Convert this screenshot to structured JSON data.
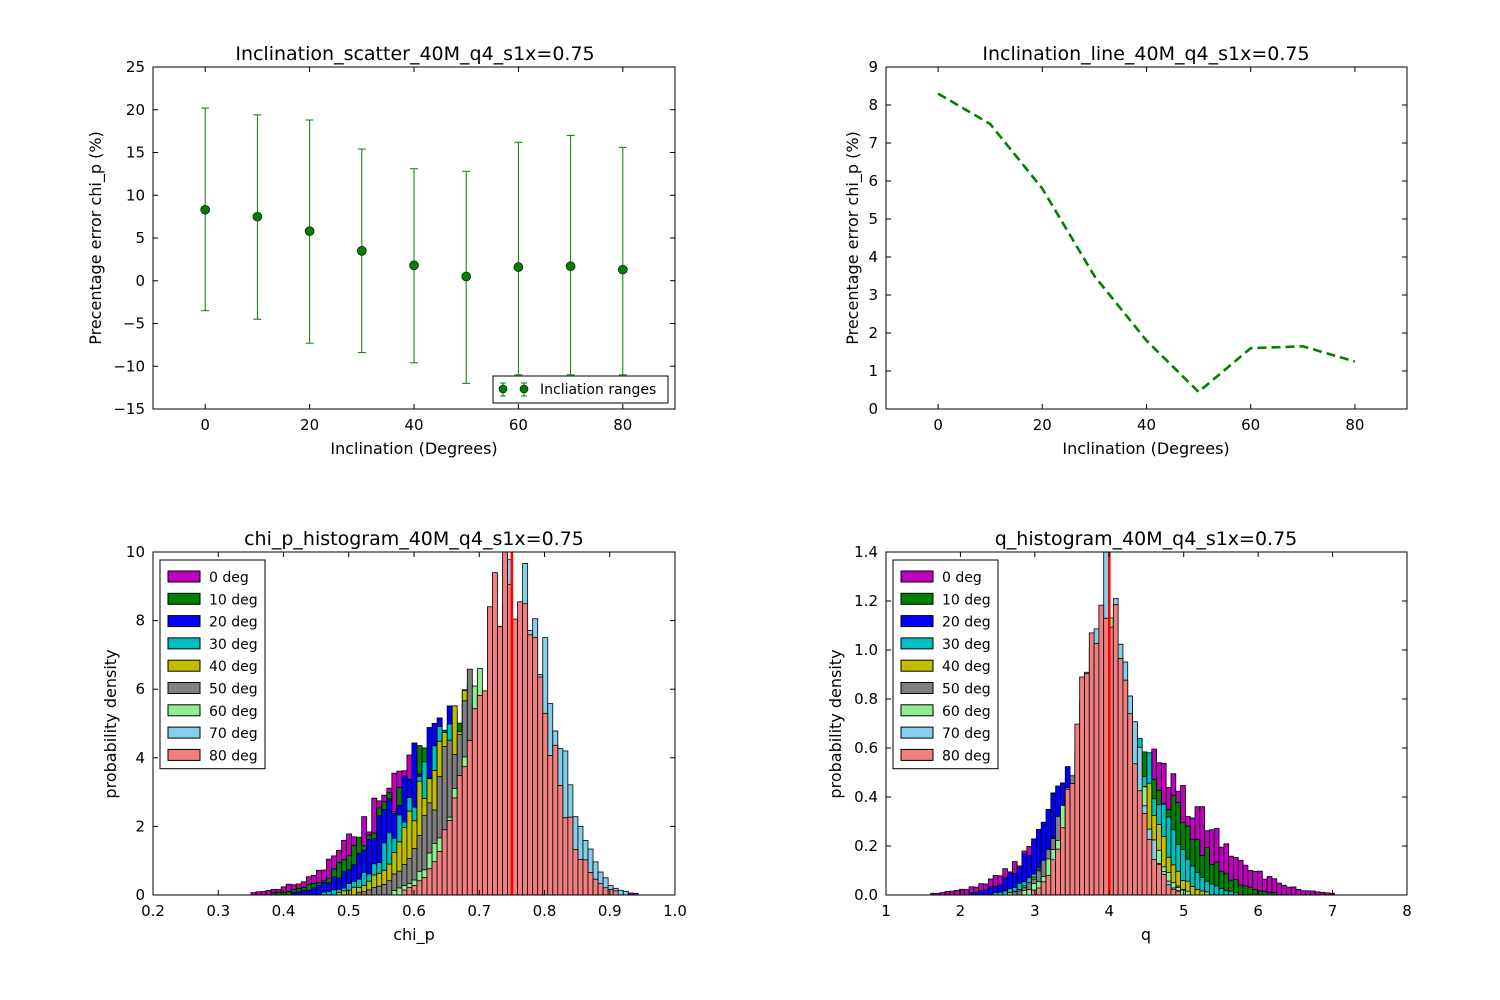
{
  "chart_data": [
    {
      "type": "scatter",
      "title": "Inclination_scatter_40M_q4_s1x=0.75",
      "xlabel": "Inclination (Degrees)",
      "ylabel": "Precentage error chi_p (%)",
      "xlim": [
        -10,
        90
      ],
      "ylim": [
        -15,
        25
      ],
      "xticks": [
        0,
        20,
        40,
        60,
        80
      ],
      "yticks": [
        -15,
        -10,
        -5,
        0,
        5,
        10,
        15,
        20,
        25
      ],
      "ytick_labels": [
        "−15",
        "−10",
        "−5",
        "0",
        "5",
        "10",
        "15",
        "20",
        "25"
      ],
      "grid": false,
      "legend": {
        "placement": "lower-right",
        "entries": [
          "Incliation ranges"
        ]
      },
      "color": "#008000",
      "series": [
        {
          "name": "Incliation ranges",
          "x": [
            0,
            10,
            20,
            30,
            40,
            50,
            60,
            70,
            80
          ],
          "y": [
            8.3,
            7.5,
            5.8,
            3.5,
            1.8,
            0.5,
            1.6,
            1.7,
            1.3
          ],
          "err_low": [
            -3.5,
            -4.5,
            -7.3,
            -8.4,
            -9.6,
            -12.0,
            -11.0,
            -11.0,
            -11.0
          ],
          "err_high": [
            20.2,
            19.4,
            18.8,
            15.4,
            13.1,
            12.8,
            16.2,
            17.0,
            15.6
          ]
        }
      ]
    },
    {
      "type": "line",
      "title": "Inclination_line_40M_q4_s1x=0.75",
      "xlabel": "Inclination (Degrees)",
      "ylabel": "Precentage error chi_p (%)",
      "xlim": [
        -10,
        90
      ],
      "ylim": [
        0,
        9
      ],
      "xticks": [
        0,
        20,
        40,
        60,
        80
      ],
      "yticks": [
        0,
        1,
        2,
        3,
        4,
        5,
        6,
        7,
        8,
        9
      ],
      "grid": false,
      "line_style": "dashed",
      "color": "#008000",
      "x": [
        0,
        10,
        20,
        30,
        40,
        50,
        60,
        70,
        80
      ],
      "y": [
        8.3,
        7.5,
        5.8,
        3.5,
        1.8,
        0.45,
        1.6,
        1.65,
        1.25
      ]
    },
    {
      "type": "histogram",
      "title": "chi_p_histogram_40M_q4_s1x=0.75",
      "xlabel": "chi_p",
      "ylabel": "probability density",
      "xlim": [
        0.2,
        1.0
      ],
      "ylim": [
        0,
        10
      ],
      "xticks": [
        0.2,
        0.3,
        0.4,
        0.5,
        0.6,
        0.7,
        0.8,
        0.9,
        1.0
      ],
      "xtick_labels": [
        "0.2",
        "0.3",
        "0.4",
        "0.5",
        "0.6",
        "0.7",
        "0.8",
        "0.9",
        "1.0"
      ],
      "yticks": [
        0,
        2,
        4,
        6,
        8,
        10
      ],
      "grid": false,
      "legend": {
        "placement": "upper-left"
      },
      "vline": {
        "x": 0.75,
        "color": "#ff0000"
      },
      "series": [
        {
          "name": "0 deg",
          "color": "#bf00bf",
          "mean": 0.64,
          "sd": 0.1,
          "peak": 4.0
        },
        {
          "name": "10 deg",
          "color": "#008000",
          "mean": 0.65,
          "sd": 0.09,
          "peak": 4.4
        },
        {
          "name": "20 deg",
          "color": "#0000ff",
          "mean": 0.66,
          "sd": 0.085,
          "peak": 4.8
        },
        {
          "name": "30 deg",
          "color": "#00bfbf",
          "mean": 0.68,
          "sd": 0.075,
          "peak": 5.3
        },
        {
          "name": "40 deg",
          "color": "#bfbf00",
          "mean": 0.69,
          "sd": 0.07,
          "peak": 5.6
        },
        {
          "name": "50 deg",
          "color": "#808080",
          "mean": 0.71,
          "sd": 0.065,
          "peak": 6.2
        },
        {
          "name": "60 deg",
          "color": "#90ee90",
          "mean": 0.74,
          "sd": 0.06,
          "peak": 7.0
        },
        {
          "name": "70 deg",
          "color": "#87ceeb",
          "mean": 0.76,
          "sd": 0.055,
          "peak": 8.6
        },
        {
          "name": "80 deg",
          "color": "#f08080",
          "mean": 0.745,
          "sd": 0.055,
          "peak": 8.9
        }
      ]
    },
    {
      "type": "histogram",
      "title": "q_histogram_40M_q4_s1x=0.75",
      "xlabel": "q",
      "ylabel": "probability density",
      "xlim": [
        1,
        8
      ],
      "ylim": [
        0,
        1.4
      ],
      "xticks": [
        1,
        2,
        3,
        4,
        5,
        6,
        7,
        8
      ],
      "xtick_labels": [
        "1",
        "2",
        "3",
        "4",
        "5",
        "6",
        "7",
        "8"
      ],
      "yticks": [
        0,
        0.2,
        0.4,
        0.6,
        0.8,
        1.0,
        1.2,
        1.4
      ],
      "ytick_labels": [
        "0.0",
        "0.2",
        "0.4",
        "0.6",
        "0.8",
        "1.0",
        "1.2",
        "1.4"
      ],
      "grid": false,
      "legend": {
        "placement": "upper-left"
      },
      "vline": {
        "x": 4.0,
        "color": "#ff0000"
      },
      "series": [
        {
          "name": "0 deg",
          "color": "#bf00bf",
          "mean": 4.3,
          "sd": 0.9,
          "peak": 0.55
        },
        {
          "name": "10 deg",
          "color": "#008000",
          "mean": 4.2,
          "sd": 0.7,
          "peak": 0.6
        },
        {
          "name": "20 deg",
          "color": "#0000ff",
          "mean": 3.9,
          "sd": 0.6,
          "peak": 0.65
        },
        {
          "name": "30 deg",
          "color": "#00bfbf",
          "mean": 4.1,
          "sd": 0.55,
          "peak": 0.7
        },
        {
          "name": "40 deg",
          "color": "#bfbf00",
          "mean": 4.0,
          "sd": 0.45,
          "peak": 0.8
        },
        {
          "name": "50 deg",
          "color": "#808080",
          "mean": 3.9,
          "sd": 0.4,
          "peak": 0.9
        },
        {
          "name": "60 deg",
          "color": "#90ee90",
          "mean": 3.95,
          "sd": 0.38,
          "peak": 1.0
        },
        {
          "name": "70 deg",
          "color": "#87ceeb",
          "mean": 4.0,
          "sd": 0.32,
          "peak": 1.25
        },
        {
          "name": "80 deg",
          "color": "#f08080",
          "mean": 3.95,
          "sd": 0.33,
          "peak": 1.22
        }
      ]
    }
  ]
}
